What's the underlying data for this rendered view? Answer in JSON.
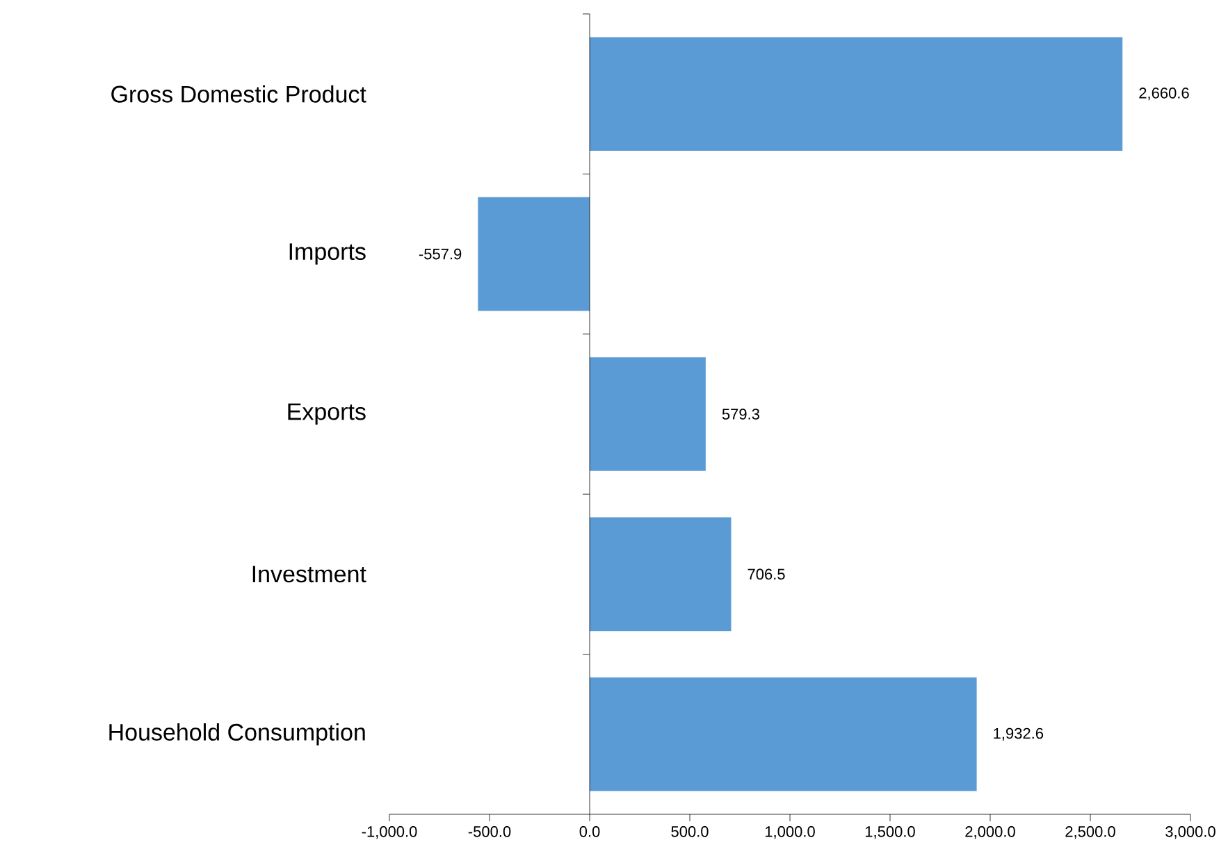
{
  "chart_data": {
    "type": "bar",
    "orientation": "horizontal",
    "categories": [
      "Gross Domestic Product",
      "Imports",
      "Exports",
      "Investment",
      "Household Consumption"
    ],
    "values": [
      2660.6,
      -557.9,
      579.3,
      706.5,
      1932.6
    ],
    "value_labels": [
      "2,660.6",
      "-557.9",
      "579.3",
      "706.5",
      "1,932.6"
    ],
    "color": "#5b9bd5",
    "xlim": [
      -1000,
      3000
    ],
    "xticks": [
      {
        "value": -1000,
        "label": "-1,000.0"
      },
      {
        "value": -500,
        "label": "-500.0"
      },
      {
        "value": 0,
        "label": "0.0"
      },
      {
        "value": 500,
        "label": "500.0"
      },
      {
        "value": 1000,
        "label": "1,000.0"
      },
      {
        "value": 1500,
        "label": "1,500.0"
      },
      {
        "value": 2000,
        "label": "2,000.0"
      },
      {
        "value": 2500,
        "label": "2,500.0"
      },
      {
        "value": 3000,
        "label": "3,000.0"
      }
    ]
  }
}
